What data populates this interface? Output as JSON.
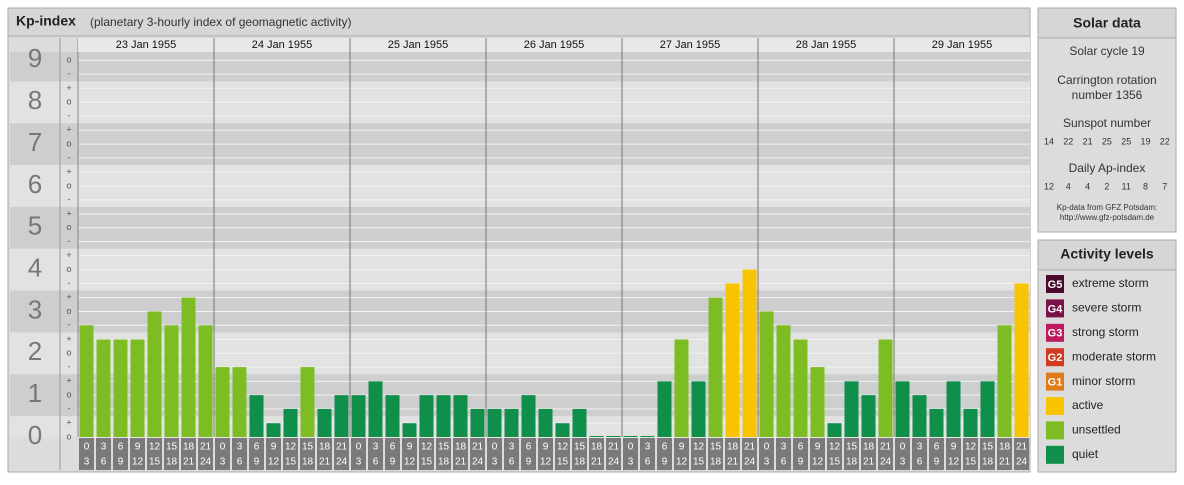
{
  "chart_data": {
    "type": "bar",
    "title": "Kp-index",
    "subtitle": "(planetary 3-hourly index of geomagnetic activity)",
    "categories": [
      "23 Jan 1955",
      "24 Jan 1955",
      "25 Jan 1955",
      "26 Jan 1955",
      "27 Jan 1955",
      "28 Jan 1955",
      "29 Jan 1955"
    ],
    "interval_labels": [
      [
        0,
        3
      ],
      [
        3,
        6
      ],
      [
        6,
        9
      ],
      [
        9,
        12
      ],
      [
        12,
        15
      ],
      [
        15,
        18
      ],
      [
        18,
        21
      ],
      [
        21,
        24
      ]
    ],
    "values": [
      [
        2.67,
        2.33,
        2.33,
        2.33,
        3,
        2.67,
        3.33,
        2.67
      ],
      [
        1.67,
        1.67,
        1,
        0.33,
        0.67,
        1.67,
        0.67,
        1
      ],
      [
        1,
        1.33,
        1,
        0.33,
        1,
        1,
        1,
        0.67
      ],
      [
        0.67,
        0.67,
        1,
        0.67,
        0.33,
        0.67,
        0,
        0
      ],
      [
        0,
        0,
        1.33,
        2.33,
        1.33,
        3.33,
        3.67,
        4
      ],
      [
        3,
        2.67,
        2.33,
        1.67,
        0.33,
        1.33,
        1,
        2.33
      ],
      [
        1.33,
        1,
        0.67,
        1.33,
        0.67,
        1.33,
        2.67,
        3.67
      ]
    ],
    "colors": [
      [
        "#7dbd23",
        "#7dbd23",
        "#7dbd23",
        "#7dbd23",
        "#7dbd23",
        "#7dbd23",
        "#7dbd23",
        "#7dbd23"
      ],
      [
        "#7dbd23",
        "#7dbd23",
        "#108f4a",
        "#108f4a",
        "#108f4a",
        "#7dbd23",
        "#108f4a",
        "#108f4a"
      ],
      [
        "#108f4a",
        "#108f4a",
        "#108f4a",
        "#108f4a",
        "#108f4a",
        "#108f4a",
        "#108f4a",
        "#108f4a"
      ],
      [
        "#108f4a",
        "#108f4a",
        "#108f4a",
        "#108f4a",
        "#108f4a",
        "#108f4a",
        "#108f4a",
        "#108f4a"
      ],
      [
        "#108f4a",
        "#108f4a",
        "#108f4a",
        "#7dbd23",
        "#108f4a",
        "#7dbd23",
        "#f8c400",
        "#f8c400"
      ],
      [
        "#7dbd23",
        "#7dbd23",
        "#7dbd23",
        "#7dbd23",
        "#108f4a",
        "#108f4a",
        "#108f4a",
        "#7dbd23"
      ],
      [
        "#108f4a",
        "#108f4a",
        "#108f4a",
        "#108f4a",
        "#108f4a",
        "#108f4a",
        "#7dbd23",
        "#f8c400"
      ]
    ],
    "ylim": [
      0,
      9.2
    ],
    "yticks": [
      0,
      1,
      2,
      3,
      4,
      5,
      6,
      7,
      8,
      9
    ],
    "yminor": [
      {
        "value": 0,
        "label": "o"
      },
      {
        "value": 0.33,
        "label": "+"
      },
      {
        "value": 0.67,
        "label": "-"
      },
      {
        "value": 1,
        "label": "o"
      },
      {
        "value": 1.33,
        "label": "+"
      },
      {
        "value": 1.67,
        "label": "-"
      },
      {
        "value": 2,
        "label": "o"
      },
      {
        "value": 2.33,
        "label": "+"
      },
      {
        "value": 2.67,
        "label": "-"
      },
      {
        "value": 3,
        "label": "o"
      },
      {
        "value": 3.33,
        "label": "+"
      },
      {
        "value": 3.67,
        "label": "-"
      },
      {
        "value": 4,
        "label": "o"
      },
      {
        "value": 4.33,
        "label": "+"
      },
      {
        "value": 4.67,
        "label": "-"
      },
      {
        "value": 5,
        "label": "o"
      },
      {
        "value": 5.33,
        "label": "+"
      },
      {
        "value": 5.67,
        "label": "-"
      },
      {
        "value": 6,
        "label": "o"
      },
      {
        "value": 6.33,
        "label": "+"
      },
      {
        "value": 6.67,
        "label": "-"
      },
      {
        "value": 7,
        "label": "o"
      },
      {
        "value": 7.33,
        "label": "+"
      },
      {
        "value": 7.67,
        "label": "-"
      },
      {
        "value": 8,
        "label": "o"
      },
      {
        "value": 8.33,
        "label": "+"
      },
      {
        "value": 8.67,
        "label": "-"
      },
      {
        "value": 9,
        "label": "o"
      }
    ],
    "grid": true
  },
  "solar_data": {
    "title": "Solar data",
    "cycle": "Solar cycle 19",
    "carrington": [
      "Carrington rotation",
      "number 1356"
    ],
    "sunspot_label": "Sunspot number",
    "sunspot_numbers": [
      14,
      22,
      21,
      25,
      25,
      19,
      22
    ],
    "ap_label": "Daily Ap-index",
    "ap_index": [
      12,
      4,
      4,
      2,
      11,
      8,
      7
    ],
    "source": [
      "Kp-data from GFZ Potsdam:",
      "http://www.gfz-potsdam.de"
    ]
  },
  "activity_levels": {
    "title": "Activity levels",
    "items": [
      {
        "code": "G5",
        "name": "extreme storm",
        "color": "#4a0a2a"
      },
      {
        "code": "G4",
        "name": "severe storm",
        "color": "#7a1248"
      },
      {
        "code": "G3",
        "name": "strong storm",
        "color": "#c01a5e"
      },
      {
        "code": "G2",
        "name": "moderate storm",
        "color": "#d3391e"
      },
      {
        "code": "G1",
        "name": "minor storm",
        "color": "#e07b1a"
      },
      {
        "name": "active",
        "color": "#f8c400"
      },
      {
        "name": "unsettled",
        "color": "#7dbd23"
      },
      {
        "name": "quiet",
        "color": "#108f4a"
      }
    ]
  }
}
